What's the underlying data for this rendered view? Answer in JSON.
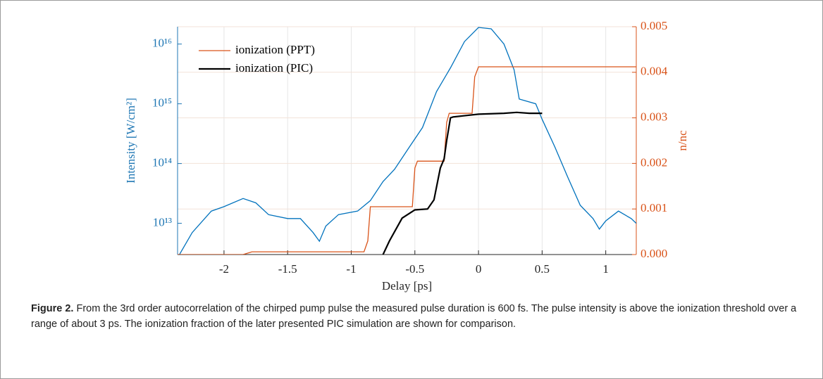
{
  "chart_data": {
    "type": "line",
    "xlabel": "Delay [ps]",
    "ylabel": "Intensity [W/cm²]",
    "y2label": "n/nc",
    "xlim": [
      -2.365,
      1.24
    ],
    "xticks": [
      -2,
      -1.5,
      -1,
      -0.5,
      0,
      0.5,
      1
    ],
    "ylim": [
      3000000000000.0,
      1.95e+16
    ],
    "ylog": true,
    "yticks": [
      {
        "value": 10000000000000.0,
        "label": "10¹³"
      },
      {
        "value": 100000000000000.0,
        "label": "10¹⁴"
      },
      {
        "value": 1000000000000000.0,
        "label": "10¹⁵"
      },
      {
        "value": 1e+16,
        "label": "10¹⁶"
      }
    ],
    "y2lim": [
      0,
      0.005
    ],
    "y2ticks": [
      {
        "value": 0,
        "label": "0.000"
      },
      {
        "value": 0.001,
        "label": "0.001"
      },
      {
        "value": 0.002,
        "label": "0.002"
      },
      {
        "value": 0.003,
        "label": "0.003"
      },
      {
        "value": 0.004,
        "label": "0.004"
      },
      {
        "value": 0.005,
        "label": "0.005"
      }
    ],
    "grid": true,
    "legend": "upper left",
    "ycolor": "#1f77b4",
    "y2color": "#d95319",
    "intensity": {
      "color": "#0072bd",
      "x": [
        -2.35,
        -2.25,
        -2.1,
        -2.0,
        -1.85,
        -1.75,
        -1.65,
        -1.5,
        -1.4,
        -1.3,
        -1.25,
        -1.2,
        -1.1,
        -0.95,
        -0.85,
        -0.75,
        -0.66,
        -0.55,
        -0.44,
        -0.33,
        -0.22,
        -0.11,
        0,
        0.1,
        0.2,
        0.28,
        0.32,
        0.45,
        0.5,
        0.6,
        0.7,
        0.8,
        0.9,
        0.95,
        1.0,
        1.1,
        1.2,
        1.24
      ],
      "values": [
        3000000000000.0,
        7000000000000.0,
        16000000000000.0,
        19000000000000.0,
        26000000000000.0,
        22000000000000.0,
        14000000000000.0,
        12000000000000.0,
        12000000000000.0,
        7000000000000.0,
        5000000000000.0,
        9000000000000.0,
        14000000000000.0,
        16000000000000.0,
        24000000000000.0,
        50000000000000.0,
        80000000000000.0,
        180000000000000.0,
        400000000000000.0,
        1600000000000000.0,
        4000000000000000.0,
        1.1e+16,
        1.9e+16,
        1.8e+16,
        1e+16,
        3700000000000000.0,
        1200000000000000.0,
        1000000000000000.0,
        550000000000000.0,
        190000000000000.0,
        60000000000000.0,
        20000000000000.0,
        12000000000000.0,
        8000000000000.0,
        11000000000000.0,
        16000000000000.0,
        12000000000000.0,
        10000000000000.0
      ]
    },
    "series": [
      {
        "name": "ionization (PPT)",
        "color": "#d95319",
        "axis": "y2",
        "x": [
          -2.365,
          -1.85,
          -1.78,
          -0.9,
          -0.87,
          -0.85,
          -0.52,
          -0.5,
          -0.48,
          -0.27,
          -0.25,
          -0.23,
          -0.05,
          -0.03,
          0.0,
          1.24
        ],
        "values": [
          0,
          0,
          6e-05,
          6e-05,
          0.0003,
          0.00105,
          0.00105,
          0.0019,
          0.00205,
          0.00205,
          0.0029,
          0.0031,
          0.0031,
          0.0039,
          0.00412,
          0.00412
        ]
      },
      {
        "name": "ionization (PIC)",
        "color": "#000000",
        "axis": "y2",
        "x": [
          -0.75,
          -0.7,
          -0.6,
          -0.5,
          -0.4,
          -0.35,
          -0.3,
          -0.27,
          -0.25,
          -0.22,
          -0.2,
          0,
          0.2,
          0.3,
          0.4,
          0.5
        ],
        "values": [
          0,
          0.0003,
          0.0008,
          0.00098,
          0.001,
          0.0012,
          0.0019,
          0.0021,
          0.0025,
          0.003,
          0.00302,
          0.00308,
          0.0031,
          0.00312,
          0.0031,
          0.0031
        ]
      }
    ]
  },
  "caption": {
    "label": "Figure 2.",
    "text": "From the 3rd order autocorrelation of the chirped pump pulse the measured pulse duration is 600 fs. The pulse intensity is above the ionization threshold over a range of about 3 ps. The ionization fraction of the later presented PIC simulation are shown for comparison."
  }
}
